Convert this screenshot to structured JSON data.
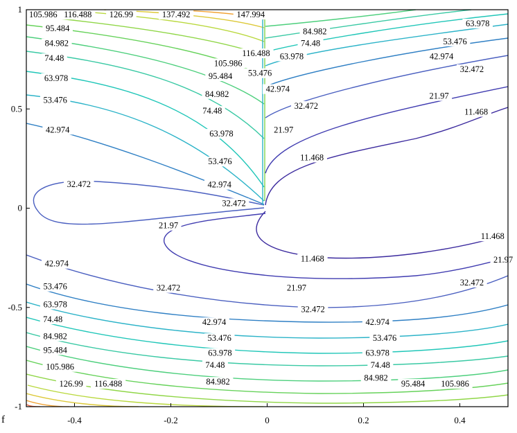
{
  "side_label": "f",
  "chart_data": {
    "type": "contour",
    "title": "",
    "xlabel": "",
    "ylabel": "",
    "xlim": [
      -0.5,
      0.5
    ],
    "ylim": [
      -1,
      1
    ],
    "grid": false,
    "x_ticks": [
      "-0.4",
      "-0.2",
      "0",
      "0.2",
      "0.4"
    ],
    "x_tick_values": [
      -0.4,
      -0.2,
      0,
      0.2,
      0.4
    ],
    "y_ticks": [
      "1",
      "0.5",
      "0",
      "-0.5",
      "-1"
    ],
    "y_tick_values": [
      1,
      0.5,
      0,
      -0.5,
      -1
    ],
    "colormap": [
      "#3b2a9e",
      "#4a5fc0",
      "#2bb3c8",
      "#39c9a4",
      "#7fd24e",
      "#c8d63a",
      "#f0a030",
      "#e8603a"
    ],
    "levels": [
      {
        "value": "11.468",
        "color": "#3b2a9e"
      },
      {
        "value": "21.97",
        "color": "#3f3bb0"
      },
      {
        "value": "32.472",
        "color": "#4a5fc0"
      },
      {
        "value": "42.974",
        "color": "#2e7fc4"
      },
      {
        "value": "53.476",
        "color": "#2bb3c8"
      },
      {
        "value": "63.978",
        "color": "#1fc6b8"
      },
      {
        "value": "74.48",
        "color": "#39c9a4"
      },
      {
        "value": "84.982",
        "color": "#4ccf7c"
      },
      {
        "value": "95.484",
        "color": "#66d25a"
      },
      {
        "value": "105.986",
        "color": "#8fd646"
      },
      {
        "value": "116.488",
        "color": "#b9d83c"
      },
      {
        "value": "126.99",
        "color": "#dcc836"
      },
      {
        "value": "137.492",
        "color": "#f0a030"
      },
      {
        "value": "147.994",
        "color": "#e8603a"
      }
    ],
    "contour_labels": [
      {
        "text": "105.986",
        "x": -0.465,
        "y": 0.975
      },
      {
        "text": "116.488",
        "x": -0.393,
        "y": 0.975
      },
      {
        "text": "126.99",
        "x": -0.303,
        "y": 0.975
      },
      {
        "text": "137.492",
        "x": -0.189,
        "y": 0.975
      },
      {
        "text": "147.994",
        "x": -0.034,
        "y": 0.975
      },
      {
        "text": "95.484",
        "x": -0.435,
        "y": 0.905
      },
      {
        "text": "84.982",
        "x": -0.437,
        "y": 0.83
      },
      {
        "text": "74.48",
        "x": -0.442,
        "y": 0.755
      },
      {
        "text": "63.978",
        "x": -0.438,
        "y": 0.655
      },
      {
        "text": "53.476",
        "x": -0.44,
        "y": 0.545
      },
      {
        "text": "42.974",
        "x": -0.435,
        "y": 0.395
      },
      {
        "text": "116.488",
        "x": -0.023,
        "y": 0.78
      },
      {
        "text": "105.986",
        "x": -0.081,
        "y": 0.73
      },
      {
        "text": "95.484",
        "x": -0.097,
        "y": 0.665
      },
      {
        "text": "84.982",
        "x": -0.104,
        "y": 0.575
      },
      {
        "text": "74.48",
        "x": -0.114,
        "y": 0.49
      },
      {
        "text": "63.978",
        "x": -0.095,
        "y": 0.375
      },
      {
        "text": "53.476",
        "x": -0.098,
        "y": 0.235
      },
      {
        "text": "42.974",
        "x": -0.099,
        "y": 0.118
      },
      {
        "text": "32.472",
        "x": -0.069,
        "y": 0.025
      },
      {
        "text": "32.472",
        "x": -0.391,
        "y": 0.12
      },
      {
        "text": "21.97",
        "x": -0.205,
        "y": -0.088
      },
      {
        "text": "84.982",
        "x": 0.099,
        "y": 0.89
      },
      {
        "text": "74.48",
        "x": 0.09,
        "y": 0.83
      },
      {
        "text": "63.978",
        "x": 0.051,
        "y": 0.765
      },
      {
        "text": "53.476",
        "x": -0.015,
        "y": 0.68
      },
      {
        "text": "42.974",
        "x": 0.022,
        "y": 0.6
      },
      {
        "text": "32.472",
        "x": 0.081,
        "y": 0.515
      },
      {
        "text": "21.97",
        "x": 0.034,
        "y": 0.395
      },
      {
        "text": "11.468",
        "x": 0.093,
        "y": 0.255
      },
      {
        "text": "63.978",
        "x": 0.437,
        "y": 0.93
      },
      {
        "text": "53.476",
        "x": 0.39,
        "y": 0.84
      },
      {
        "text": "42.974",
        "x": 0.362,
        "y": 0.765
      },
      {
        "text": "32.472",
        "x": 0.425,
        "y": 0.7
      },
      {
        "text": "21.97",
        "x": 0.357,
        "y": 0.565
      },
      {
        "text": "11.468",
        "x": 0.434,
        "y": 0.485
      },
      {
        "text": "11.468",
        "x": 0.468,
        "y": -0.142
      },
      {
        "text": "11.468",
        "x": 0.094,
        "y": -0.255
      },
      {
        "text": "21.97",
        "x": 0.49,
        "y": -0.26
      },
      {
        "text": "32.472",
        "x": 0.425,
        "y": -0.375
      },
      {
        "text": "21.97",
        "x": 0.061,
        "y": -0.402
      },
      {
        "text": "32.472",
        "x": -0.205,
        "y": -0.402
      },
      {
        "text": "32.472",
        "x": 0.095,
        "y": -0.51
      },
      {
        "text": "42.974",
        "x": -0.437,
        "y": -0.28
      },
      {
        "text": "53.476",
        "x": -0.44,
        "y": -0.395
      },
      {
        "text": "63.978",
        "x": -0.44,
        "y": -0.485
      },
      {
        "text": "74.48",
        "x": -0.445,
        "y": -0.56
      },
      {
        "text": "84.982",
        "x": -0.44,
        "y": -0.645
      },
      {
        "text": "95.484",
        "x": -0.44,
        "y": -0.715
      },
      {
        "text": "105.986",
        "x": -0.43,
        "y": -0.8
      },
      {
        "text": "126.99",
        "x": -0.407,
        "y": -0.885
      },
      {
        "text": "116.488",
        "x": -0.33,
        "y": -0.885
      },
      {
        "text": "42.974",
        "x": -0.11,
        "y": -0.575
      },
      {
        "text": "53.476",
        "x": -0.099,
        "y": -0.655
      },
      {
        "text": "63.978",
        "x": -0.098,
        "y": -0.73
      },
      {
        "text": "74.48",
        "x": -0.108,
        "y": -0.79
      },
      {
        "text": "84.982",
        "x": -0.102,
        "y": -0.875
      },
      {
        "text": "42.974",
        "x": 0.229,
        "y": -0.575
      },
      {
        "text": "53.476",
        "x": 0.244,
        "y": -0.655
      },
      {
        "text": "63.978",
        "x": 0.229,
        "y": -0.73
      },
      {
        "text": "74.48",
        "x": 0.235,
        "y": -0.79
      },
      {
        "text": "84.982",
        "x": 0.226,
        "y": -0.855
      },
      {
        "text": "95.484",
        "x": 0.303,
        "y": -0.885
      },
      {
        "text": "105.986",
        "x": 0.39,
        "y": -0.885
      }
    ]
  }
}
